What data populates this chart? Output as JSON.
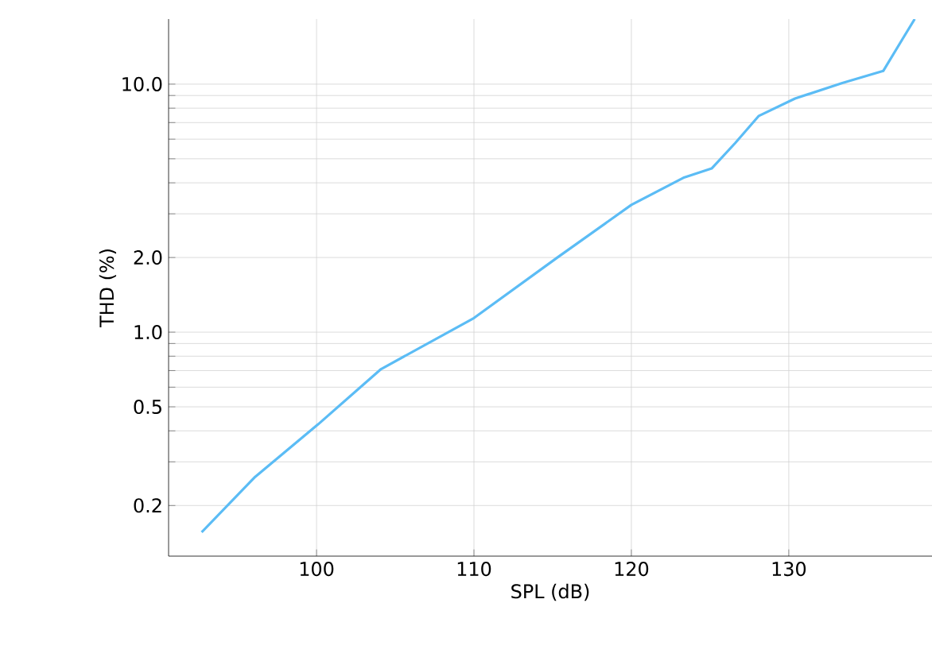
{
  "chart_data": {
    "type": "line",
    "xlabel": "SPL (dB)",
    "ylabel": "THD (%)",
    "log": "y",
    "grid": true,
    "color": "#5bbcf5",
    "x": [
      92.7,
      96.1,
      100.1,
      104.1,
      110,
      115.3,
      120,
      123.3,
      125.1,
      126.6,
      128.1,
      130.4,
      133.4,
      136.0,
      137.2,
      138.0
    ],
    "values": [
      0.156,
      0.261,
      0.425,
      0.71,
      1.14,
      2.0,
      3.26,
      4.19,
      4.57,
      5.79,
      7.45,
      8.75,
      10.1,
      11.3,
      15.1,
      18.3
    ],
    "xlim": [
      90.6,
      139.1
    ],
    "xticks": [
      100,
      110,
      120,
      130
    ],
    "ylim": [
      0.125,
      18.3
    ],
    "yticks": [
      0.2,
      {
        "value": 0.3,
        "label": null
      },
      {
        "value": 0.4,
        "label": null
      },
      0.5,
      {
        "value": 0.6,
        "label": null
      },
      {
        "value": 0.7,
        "label": null
      },
      {
        "value": 0.8,
        "label": null
      },
      {
        "value": 0.9,
        "label": null
      },
      {
        "value": 1,
        "label": "1.0"
      },
      {
        "value": 2,
        "label": "2.0"
      },
      {
        "value": 3,
        "label": null
      },
      {
        "value": 4,
        "label": null
      },
      {
        "value": 5,
        "label": null
      },
      {
        "value": 6,
        "label": null
      },
      {
        "value": 7,
        "label": null
      },
      {
        "value": 8,
        "label": null
      },
      {
        "value": 9,
        "label": null
      },
      {
        "value": 10,
        "label": "10.0"
      }
    ]
  }
}
